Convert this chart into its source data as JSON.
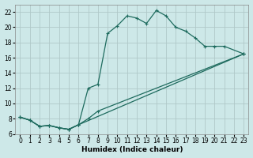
{
  "xlabel": "Humidex (Indice chaleur)",
  "background_color": "#cde8e8",
  "grid_color": "#b0c8c8",
  "line_color": "#1e6b5e",
  "xlim": [
    -0.5,
    23.5
  ],
  "ylim": [
    6,
    23
  ],
  "yticks": [
    6,
    8,
    10,
    12,
    14,
    16,
    18,
    20,
    22
  ],
  "xticks": [
    0,
    1,
    2,
    3,
    4,
    5,
    6,
    7,
    8,
    9,
    10,
    11,
    12,
    13,
    14,
    15,
    16,
    17,
    18,
    19,
    20,
    21,
    22,
    23
  ],
  "line1_x": [
    0,
    1,
    2,
    3,
    4,
    5,
    6,
    7,
    8,
    9,
    10,
    11,
    12,
    13,
    14,
    15,
    16,
    17,
    18,
    19,
    20,
    21,
    23
  ],
  "line1_y": [
    8.2,
    7.8,
    7.0,
    7.1,
    6.8,
    6.6,
    7.2,
    12.0,
    12.5,
    19.2,
    20.2,
    21.5,
    21.2,
    20.5,
    22.2,
    21.5,
    20.0,
    19.5,
    18.6,
    17.5,
    17.5,
    17.5,
    16.5
  ],
  "line2_x": [
    0,
    1,
    2,
    3,
    4,
    5,
    6,
    23
  ],
  "line2_y": [
    8.2,
    7.8,
    7.0,
    7.1,
    6.8,
    6.6,
    7.2,
    16.5
  ],
  "line3_x": [
    0,
    1,
    2,
    3,
    4,
    5,
    6,
    7,
    8,
    23
  ],
  "line3_y": [
    8.2,
    7.8,
    7.0,
    7.1,
    6.8,
    6.6,
    7.2,
    8.0,
    9.0,
    16.5
  ]
}
